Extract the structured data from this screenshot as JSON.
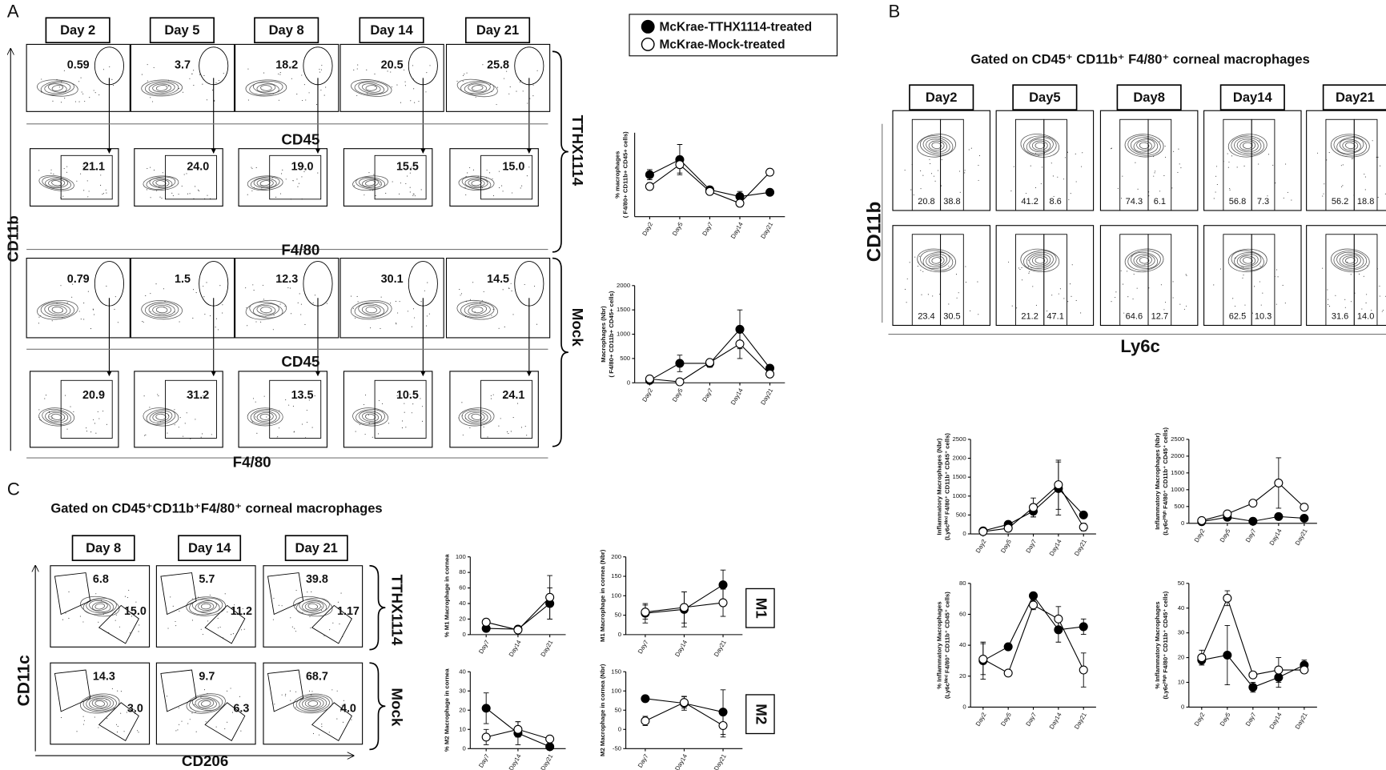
{
  "panel_labels": [
    "A",
    "B",
    "C"
  ],
  "legend": [
    {
      "name": "McKrae-TTHX1114-treated",
      "fill": "#000000"
    },
    {
      "name": "McKrae-Mock-treated",
      "fill": "#ffffff"
    }
  ],
  "panel_a": {
    "days": [
      "Day 2",
      "Day 5",
      "Day 8",
      "Day 14",
      "Day 21"
    ],
    "rows": [
      [
        "0.59",
        "3.7",
        "18.2",
        "20.5",
        "25.8"
      ],
      [
        "21.1",
        "24.0",
        "19.0",
        "15.5",
        "15.0"
      ],
      [
        "0.79",
        "1.5",
        "12.3",
        "30.1",
        "14.5"
      ],
      [
        "20.9",
        "31.2",
        "13.5",
        "10.5",
        "24.1"
      ]
    ],
    "x_labels": [
      "CD45",
      "F4/80",
      "CD45",
      "F4/80"
    ],
    "y_label": "CD11b",
    "groups": [
      "TTHX1114",
      "Mock"
    ]
  },
  "panel_b": {
    "title": "Gated on CD45⁺ CD11b⁺ F4/80⁺ corneal macrophages",
    "days": [
      "Day2",
      "Day5",
      "Day8",
      "Day14",
      "Day21"
    ],
    "rows": [
      [
        [
          "20.8",
          "38.8"
        ],
        [
          "41.2",
          "8.6"
        ],
        [
          "74.3",
          "6.1"
        ],
        [
          "56.8",
          "7.3"
        ],
        [
          "56.2",
          "18.8"
        ]
      ],
      [
        [
          "23.4",
          "30.5"
        ],
        [
          "21.2",
          "47.1"
        ],
        [
          "64.6",
          "12.7"
        ],
        [
          "62.5",
          "10.3"
        ],
        [
          "31.6",
          "14.0"
        ]
      ]
    ],
    "x_label": "Ly6c",
    "y_label": "CD11b"
  },
  "panel_c": {
    "title": "Gated on CD45⁺CD11b⁺F4/80⁺ corneal macrophages",
    "days": [
      "Day 8",
      "Day 14",
      "Day 21"
    ],
    "rows": [
      [
        [
          "6.8",
          "15.0"
        ],
        [
          "5.7",
          "11.2"
        ],
        [
          "39.8",
          "1.17"
        ]
      ],
      [
        [
          "14.3",
          "3.0"
        ],
        [
          "9.7",
          "6.3"
        ],
        [
          "68.7",
          "4.0"
        ]
      ]
    ],
    "x_label": "CD206",
    "y_label": "CD11c",
    "groups": [
      "TTHX1114",
      "Mock"
    ],
    "subsets": [
      "M1",
      "M2"
    ]
  },
  "charts": [
    {
      "type": "line",
      "ylabel": [
        "% macrophages",
        "( F4/80+ CD11b+ CD45+ cells)"
      ],
      "categories": [
        "Day2",
        "Day5",
        "Day7",
        "Day14",
        "Day21"
      ],
      "ylim": [
        0,
        50
      ],
      "series": [
        {
          "fill": "#000000",
          "values": [
            25,
            34,
            16,
            12,
            14.5
          ],
          "errors": [
            3,
            9,
            2,
            3,
            1
          ]
        },
        {
          "fill": "#ffffff",
          "values": [
            18,
            31,
            15,
            8,
            26.5
          ],
          "errors": [
            2,
            5,
            2,
            2,
            2
          ]
        }
      ]
    },
    {
      "type": "line",
      "ylabel": [
        "Macrophages (Nbr)",
        "( F4/80+ CD11b+ CD45+ cells)"
      ],
      "categories": [
        "Day2",
        "Day5",
        "Day7",
        "Day14",
        "Day21"
      ],
      "ylim": [
        0,
        2000
      ],
      "yticks": [
        0,
        500,
        1000,
        1500,
        2000
      ],
      "series": [
        {
          "fill": "#000000",
          "values": [
            50,
            400,
            400,
            1100,
            300
          ],
          "errors": [
            30,
            170,
            80,
            400,
            60
          ]
        },
        {
          "fill": "#ffffff",
          "values": [
            80,
            20,
            420,
            800,
            180
          ],
          "errors": [
            20,
            10,
            60,
            300,
            50
          ]
        }
      ]
    },
    {
      "type": "line",
      "ylabel": [
        "Inflammatory Macrophages (Nbr)",
        "(Ly6cᴹᵉᵈ F4/80⁺ CD11b⁺ CD45⁺ cells)"
      ],
      "categories": [
        "Day2",
        "Day5",
        "Day7",
        "Day14",
        "Day21"
      ],
      "ylim": [
        0,
        2500
      ],
      "yticks": [
        0,
        500,
        1000,
        1500,
        2000,
        2500
      ],
      "series": [
        {
          "fill": "#000000",
          "values": [
            80,
            250,
            600,
            1200,
            500
          ],
          "errors": [
            30,
            60,
            150,
            700,
            40
          ]
        },
        {
          "fill": "#ffffff",
          "values": [
            60,
            150,
            700,
            1300,
            180
          ],
          "errors": [
            20,
            40,
            250,
            650,
            100
          ]
        }
      ]
    },
    {
      "type": "line",
      "ylabel": [
        "Inflammatory Macrophages (Nbr)",
        "(Ly6cᴴⁱᵍʰ F4/80⁺ CD11b⁺ CD45⁺ cells)"
      ],
      "categories": [
        "Day2",
        "Day5",
        "Day7",
        "Day14",
        "Day21"
      ],
      "ylim": [
        0,
        2500
      ],
      "yticks": [
        0,
        500,
        1000,
        1500,
        2000,
        2500
      ],
      "series": [
        {
          "fill": "#000000",
          "values": [
            50,
            180,
            60,
            200,
            150
          ],
          "errors": [
            20,
            40,
            20,
            40,
            30
          ]
        },
        {
          "fill": "#ffffff",
          "values": [
            80,
            280,
            600,
            1200,
            480
          ],
          "errors": [
            20,
            40,
            60,
            750,
            40
          ]
        }
      ]
    },
    {
      "type": "line",
      "ylabel": [
        "% Inflammatory Macrophages",
        "(Ly6cᴹᵉᵈ F4/80⁺ CD11b⁺ CD45⁺ cells)"
      ],
      "categories": [
        "Day2",
        "Day5",
        "Day7",
        "Day14",
        "Day21"
      ],
      "ylim": [
        0,
        80
      ],
      "yticks": [
        0,
        20,
        40,
        60,
        80
      ],
      "series": [
        {
          "fill": "#000000",
          "values": [
            30,
            39,
            72,
            50,
            52
          ],
          "errors": [
            12,
            2,
            2,
            8,
            5
          ]
        },
        {
          "fill": "#ffffff",
          "values": [
            31,
            22,
            66,
            57,
            24
          ],
          "errors": [
            10,
            2,
            3,
            8,
            11
          ]
        }
      ]
    },
    {
      "type": "line",
      "ylabel": [
        "% Inflammatory Macrophages",
        "(Ly6cᴴⁱᵍʰ F4/80⁺ CD11b⁺ CD45⁺ cells)"
      ],
      "categories": [
        "Day2",
        "Day5",
        "Day7",
        "Day14",
        "Day21"
      ],
      "ylim": [
        0,
        50
      ],
      "yticks": [
        0,
        10,
        20,
        30,
        40,
        50
      ],
      "series": [
        {
          "fill": "#000000",
          "values": [
            19,
            21,
            8,
            12,
            17
          ],
          "errors": [
            2,
            12,
            2,
            4,
            2
          ]
        },
        {
          "fill": "#ffffff",
          "values": [
            20,
            44,
            13,
            15,
            15
          ],
          "errors": [
            3,
            3,
            1,
            5,
            1
          ]
        }
      ]
    },
    {
      "type": "line",
      "ylabel": [
        "% M1 Macrophage in cornea"
      ],
      "categories": [
        "Day7",
        "Day14",
        "Day21"
      ],
      "ylim": [
        0,
        100
      ],
      "yticks": [
        0,
        20,
        40,
        60,
        80,
        100
      ],
      "series": [
        {
          "fill": "#000000",
          "values": [
            8,
            7,
            40
          ],
          "errors": [
            2,
            2,
            20
          ]
        },
        {
          "fill": "#ffffff",
          "values": [
            16,
            6,
            48
          ],
          "errors": [
            2,
            2,
            28
          ]
        }
      ]
    },
    {
      "type": "line",
      "ylabel": [
        "M1 Macrophage in cornea (Nbr)"
      ],
      "categories": [
        "Day7",
        "Day14",
        "Day21"
      ],
      "ylim": [
        0,
        200
      ],
      "yticks": [
        0,
        50,
        100,
        150,
        200
      ],
      "series": [
        {
          "fill": "#000000",
          "values": [
            55,
            65,
            128
          ],
          "errors": [
            25,
            45,
            38
          ]
        },
        {
          "fill": "#ffffff",
          "values": [
            58,
            70,
            82
          ],
          "errors": [
            18,
            40,
            35
          ]
        }
      ]
    },
    {
      "type": "line",
      "ylabel": [
        "% M2 Macrophage in cornea"
      ],
      "categories": [
        "Day7",
        "Day14",
        "Day21"
      ],
      "ylim": [
        0,
        40
      ],
      "yticks": [
        0,
        10,
        20,
        30,
        40
      ],
      "series": [
        {
          "fill": "#000000",
          "values": [
            21,
            8,
            1
          ],
          "errors": [
            8,
            6,
            1
          ]
        },
        {
          "fill": "#ffffff",
          "values": [
            6,
            10,
            5
          ],
          "errors": [
            4,
            4,
            1
          ]
        }
      ]
    },
    {
      "type": "line",
      "ylabel": [
        "M2 Macrophage in cornea (Nbr)"
      ],
      "categories": [
        "Day7",
        "Day14",
        "Day21"
      ],
      "ylim": [
        -50,
        150
      ],
      "yticks": [
        -50,
        0,
        50,
        100,
        150
      ],
      "series": [
        {
          "fill": "#000000",
          "values": [
            80,
            68,
            45
          ],
          "errors": [
            5,
            18,
            58
          ]
        },
        {
          "fill": "#ffffff",
          "values": [
            22,
            70,
            10
          ],
          "errors": [
            12,
            15,
            30
          ]
        }
      ]
    }
  ]
}
